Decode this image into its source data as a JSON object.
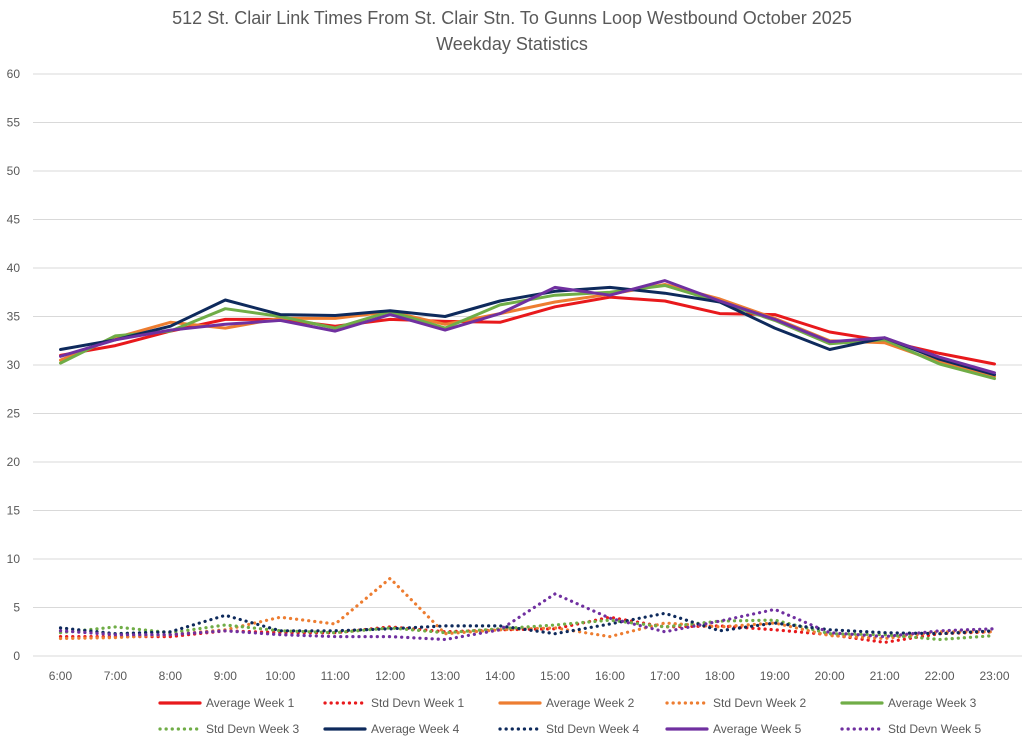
{
  "chart_data": {
    "type": "line",
    "title": "512 St. Clair Link Times From St. Clair Stn. To Gunns Loop Westbound October 2025",
    "subtitle": "Weekday Statistics",
    "xlabel": "",
    "ylabel": "",
    "ylim": [
      0,
      60
    ],
    "yticks": [
      "0",
      "5",
      "10",
      "15",
      "20",
      "25",
      "30",
      "35",
      "40",
      "45",
      "50",
      "55",
      "60"
    ],
    "grid": true,
    "legend_position": "bottom",
    "categories": [
      "6:00",
      "7:00",
      "8:00",
      "9:00",
      "10:00",
      "11:00",
      "12:00",
      "13:00",
      "14:00",
      "15:00",
      "16:00",
      "17:00",
      "18:00",
      "19:00",
      "20:00",
      "21:00",
      "22:00",
      "23:00"
    ],
    "series": [
      {
        "name": "Average Week 1",
        "color": "#E8191C",
        "style": "solid",
        "values": [
          31.0,
          32.0,
          33.5,
          34.7,
          34.7,
          34.0,
          34.7,
          34.5,
          34.4,
          36.0,
          37.0,
          36.6,
          35.3,
          35.2,
          33.4,
          32.5,
          31.2,
          30.1
        ]
      },
      {
        "name": "Std Devn Week 1",
        "color": "#E8191C",
        "style": "dotted",
        "values": [
          2.0,
          2.0,
          2.0,
          2.6,
          2.4,
          2.4,
          3.0,
          2.5,
          2.7,
          2.8,
          4.0,
          3.0,
          3.1,
          2.7,
          2.2,
          1.4,
          2.3,
          2.5
        ]
      },
      {
        "name": "Average Week 2",
        "color": "#ED7D31",
        "style": "solid",
        "values": [
          30.5,
          32.8,
          34.4,
          33.8,
          34.8,
          34.8,
          35.5,
          34.2,
          35.3,
          36.5,
          37.3,
          38.3,
          36.8,
          34.8,
          32.5,
          32.3,
          30.3,
          28.8
        ]
      },
      {
        "name": "Std Devn Week 2",
        "color": "#ED7D31",
        "style": "dotted",
        "values": [
          1.8,
          1.9,
          2.2,
          2.7,
          4.0,
          3.3,
          8.0,
          2.3,
          2.7,
          2.9,
          2.0,
          3.4,
          3.0,
          3.4,
          2.1,
          1.8,
          2.5,
          2.5
        ]
      },
      {
        "name": "Average Week 3",
        "color": "#70AD47",
        "style": "solid",
        "values": [
          30.2,
          33.0,
          33.5,
          35.8,
          35.0,
          33.8,
          35.5,
          33.8,
          36.2,
          37.2,
          37.5,
          38.2,
          36.5,
          34.6,
          32.2,
          32.6,
          30.1,
          28.6
        ]
      },
      {
        "name": "Std Devn Week 3",
        "color": "#70AD47",
        "style": "dotted",
        "values": [
          2.4,
          3.0,
          2.4,
          3.2,
          2.6,
          2.4,
          2.9,
          2.4,
          2.8,
          3.2,
          3.7,
          3.0,
          3.6,
          3.7,
          2.3,
          2.2,
          1.7,
          2.1
        ]
      },
      {
        "name": "Average Week 4",
        "color": "#0E2A5C",
        "style": "solid",
        "values": [
          31.6,
          32.6,
          34.0,
          36.7,
          35.2,
          35.1,
          35.6,
          35.0,
          36.6,
          37.6,
          38.0,
          37.4,
          36.5,
          33.8,
          31.6,
          32.8,
          30.6,
          29.0
        ]
      },
      {
        "name": "Std Devn Week 4",
        "color": "#0E2A5C",
        "style": "dotted",
        "values": [
          2.9,
          2.3,
          2.5,
          4.2,
          2.6,
          2.6,
          2.8,
          3.1,
          3.1,
          2.3,
          3.3,
          4.4,
          2.6,
          3.4,
          2.7,
          2.4,
          2.3,
          2.6
        ]
      },
      {
        "name": "Average Week 5",
        "color": "#7030A0",
        "style": "solid",
        "values": [
          30.9,
          32.6,
          33.6,
          34.2,
          34.6,
          33.5,
          35.2,
          33.6,
          35.3,
          38.0,
          37.2,
          38.7,
          36.6,
          34.7,
          32.4,
          32.8,
          30.8,
          29.2
        ]
      },
      {
        "name": "Std Devn Week 5",
        "color": "#7030A0",
        "style": "dotted",
        "values": [
          2.6,
          2.2,
          2.2,
          2.6,
          2.2,
          2.0,
          2.0,
          1.7,
          2.7,
          6.4,
          3.9,
          2.5,
          3.6,
          4.8,
          2.4,
          2.0,
          2.6,
          2.8
        ]
      }
    ]
  }
}
